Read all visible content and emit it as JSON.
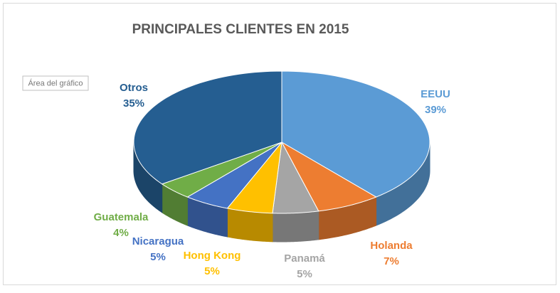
{
  "chart_data": {
    "type": "pie3d",
    "title": "PRINCIPALES CLIENTES EN 2015",
    "annotations": [
      "Área del gráfico"
    ],
    "categories": [
      "EEUU",
      "Holanda",
      "Panamá",
      "Hong Kong",
      "Nicaragua",
      "Guatemala",
      "Otros"
    ],
    "values": [
      39,
      7,
      5,
      5,
      5,
      4,
      35
    ],
    "value_labels": [
      "39%",
      "7%",
      "5%",
      "5%",
      "5%",
      "4%",
      "35%"
    ],
    "colors": [
      "#5b9bd5",
      "#ed7d31",
      "#a5a5a5",
      "#ffc000",
      "#4472c4",
      "#70ad47",
      "#255e91"
    ]
  }
}
